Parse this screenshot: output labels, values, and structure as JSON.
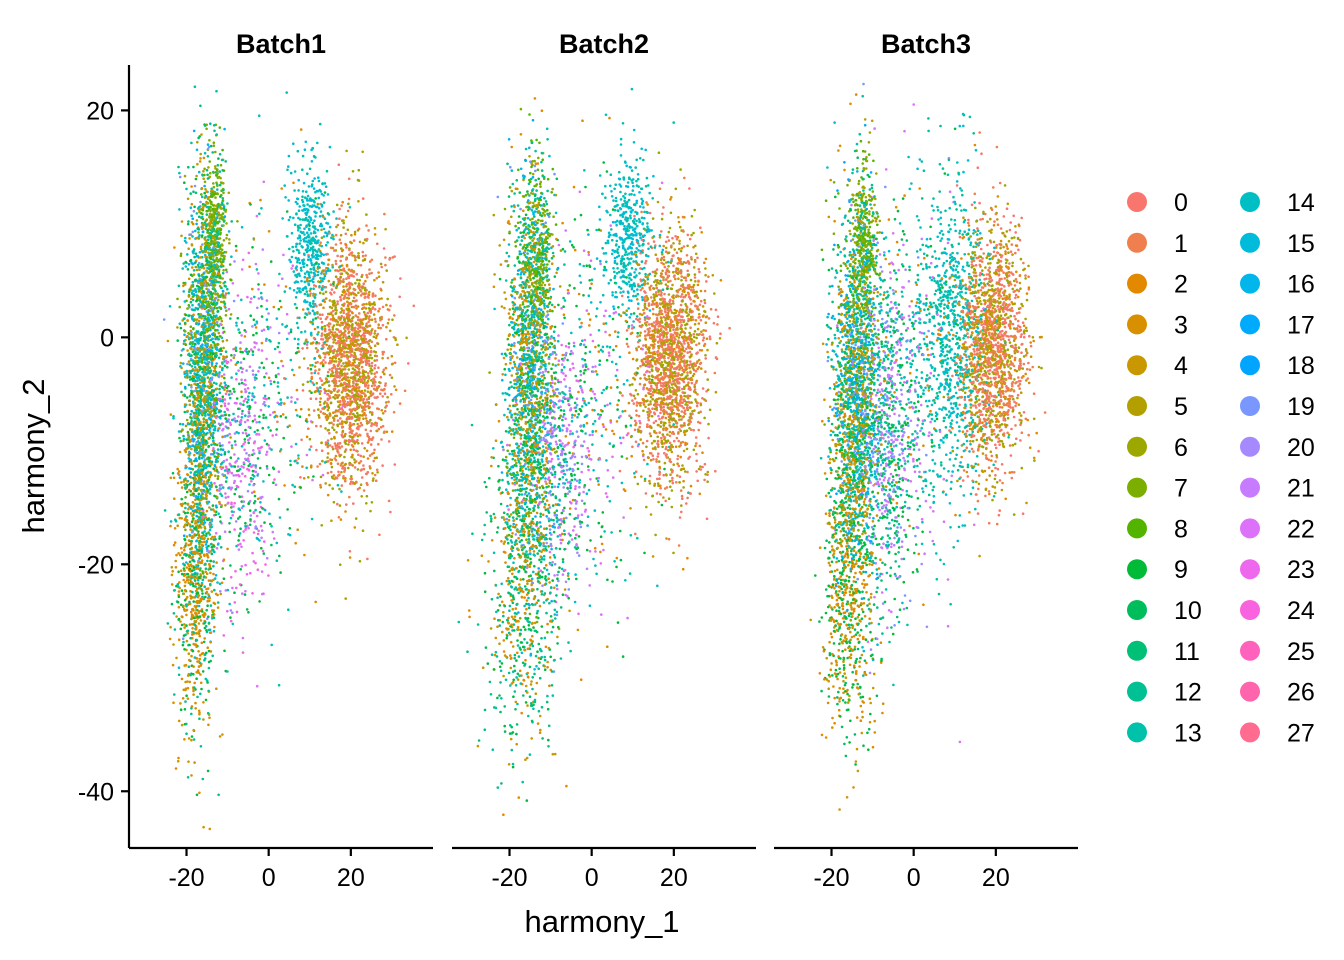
{
  "chart_data": {
    "type": "scatter",
    "xlabel": "harmony_1",
    "ylabel": "harmony_2",
    "xlim": [
      -34,
      40
    ],
    "ylim": [
      -45,
      24
    ],
    "x_ticks": [
      -20,
      0,
      20
    ],
    "x_tick_labels": [
      "-20",
      "0",
      "20"
    ],
    "y_ticks": [
      20,
      0,
      -20,
      -40
    ],
    "y_tick_labels": [
      "20",
      "0",
      "-20",
      "-40"
    ],
    "grid": false,
    "legend_position": "right",
    "legend_columns": 2,
    "panels": [
      {
        "title": "Batch1",
        "seed": 11,
        "n_points": 6200,
        "profile": "b1"
      },
      {
        "title": "Batch2",
        "seed": 23,
        "n_points": 6000,
        "profile": "b2"
      },
      {
        "title": "Batch3",
        "seed": 37,
        "n_points": 6600,
        "profile": "b3"
      }
    ],
    "clusters": [
      {
        "label": "0",
        "color": "#F8766D"
      },
      {
        "label": "1",
        "color": "#F07F4F"
      },
      {
        "label": "2",
        "color": "#E38900"
      },
      {
        "label": "3",
        "color": "#D89000"
      },
      {
        "label": "4",
        "color": "#C99800"
      },
      {
        "label": "5",
        "color": "#B3A000"
      },
      {
        "label": "6",
        "color": "#9CA700"
      },
      {
        "label": "7",
        "color": "#7CAE00"
      },
      {
        "label": "8",
        "color": "#53B400"
      },
      {
        "label": "9",
        "color": "#00BA38"
      },
      {
        "label": "10",
        "color": "#00BD5C"
      },
      {
        "label": "11",
        "color": "#00C078"
      },
      {
        "label": "12",
        "color": "#00C094"
      },
      {
        "label": "13",
        "color": "#00C1AA"
      },
      {
        "label": "14",
        "color": "#00BFC4"
      },
      {
        "label": "15",
        "color": "#00BBDA"
      },
      {
        "label": "16",
        "color": "#00B6EB"
      },
      {
        "label": "17",
        "color": "#00ABFD"
      },
      {
        "label": "18",
        "color": "#00A5FF"
      },
      {
        "label": "19",
        "color": "#7997FF"
      },
      {
        "label": "20",
        "color": "#A58AFF"
      },
      {
        "label": "21",
        "color": "#C77CFF"
      },
      {
        "label": "22",
        "color": "#DC71FA"
      },
      {
        "label": "23",
        "color": "#ED68ED"
      },
      {
        "label": "24",
        "color": "#F863DF"
      },
      {
        "label": "25",
        "color": "#FF62BC"
      },
      {
        "label": "26",
        "color": "#FF65AC"
      },
      {
        "label": "27",
        "color": "#FF6C90"
      }
    ],
    "groups": {
      "b1": [
        {
          "w": 0.3,
          "cx": 20,
          "cy": -2,
          "sx": 4.5,
          "sy": 5.5,
          "clusters": [
            0,
            0,
            0,
            1,
            1,
            2,
            4,
            5,
            6,
            6
          ]
        },
        {
          "w": 0.07,
          "cx": 10,
          "cy": 8,
          "sx": 2.5,
          "sy": 4,
          "clusters": [
            14,
            15,
            13
          ]
        },
        {
          "w": 0.32,
          "cx": -16,
          "cy": -4,
          "sx": 2.5,
          "sy": 9,
          "clusters": [
            2,
            3,
            4,
            5,
            10,
            11,
            12,
            13,
            14,
            15,
            16,
            17,
            19,
            7,
            8,
            9
          ]
        },
        {
          "w": 0.08,
          "cx": -13,
          "cy": 8,
          "sx": 1.5,
          "sy": 4,
          "clusters": [
            7,
            8,
            6,
            12
          ]
        },
        {
          "w": 0.1,
          "cx": -18,
          "cy": -22,
          "sx": 2.5,
          "sy": 7,
          "clusters": [
            2,
            3,
            3,
            4,
            9,
            12
          ]
        },
        {
          "w": 0.08,
          "cx": -6,
          "cy": -10,
          "sx": 4,
          "sy": 7,
          "clusters": [
            20,
            21,
            22,
            23,
            24,
            9,
            10,
            14
          ]
        },
        {
          "w": 0.05,
          "cx": 2,
          "cy": -4,
          "sx": 8,
          "sy": 9,
          "clusters": [
            14,
            13,
            9,
            22,
            2
          ]
        }
      ],
      "b2": [
        {
          "w": 0.3,
          "cx": 19,
          "cy": -2,
          "sx": 4.5,
          "sy": 5.5,
          "clusters": [
            0,
            0,
            0,
            1,
            1,
            2,
            4,
            5,
            6,
            6
          ]
        },
        {
          "w": 0.07,
          "cx": 9,
          "cy": 9,
          "sx": 3,
          "sy": 3.5,
          "clusters": [
            14,
            15,
            13
          ]
        },
        {
          "w": 0.3,
          "cx": -15,
          "cy": -4,
          "sx": 3,
          "sy": 9,
          "clusters": [
            2,
            3,
            4,
            5,
            10,
            11,
            12,
            13,
            14,
            15,
            16,
            17,
            19,
            7,
            8,
            9
          ]
        },
        {
          "w": 0.06,
          "cx": -13,
          "cy": 7,
          "sx": 1.5,
          "sy": 4,
          "clusters": [
            7,
            8,
            6,
            12
          ]
        },
        {
          "w": 0.12,
          "cx": -17,
          "cy": -22,
          "sx": 4.5,
          "sy": 7,
          "clusters": [
            2,
            3,
            4,
            9,
            10,
            11,
            12,
            13
          ]
        },
        {
          "w": 0.08,
          "cx": -8,
          "cy": -10,
          "sx": 4,
          "sy": 6,
          "clusters": [
            20,
            21,
            22,
            23,
            19,
            9,
            10,
            14
          ]
        },
        {
          "w": 0.07,
          "cx": 0,
          "cy": -5,
          "sx": 8,
          "sy": 9,
          "clusters": [
            14,
            13,
            9,
            22,
            2
          ]
        }
      ],
      "b3": [
        {
          "w": 0.26,
          "cx": 19,
          "cy": -1,
          "sx": 4,
          "sy": 5.5,
          "clusters": [
            0,
            0,
            0,
            1,
            1,
            2,
            4,
            5,
            6,
            6
          ]
        },
        {
          "w": 0.12,
          "cx": 9,
          "cy": 0,
          "sx": 4.5,
          "sy": 7,
          "clusters": [
            14,
            15,
            13,
            12,
            13
          ]
        },
        {
          "w": 0.28,
          "cx": -14,
          "cy": -5,
          "sx": 3,
          "sy": 8,
          "clusters": [
            2,
            3,
            4,
            5,
            10,
            11,
            12,
            13,
            14,
            15,
            16,
            17,
            18,
            19,
            7,
            8,
            9
          ]
        },
        {
          "w": 0.06,
          "cx": -12,
          "cy": 8,
          "sx": 1.5,
          "sy": 4,
          "clusters": [
            7,
            8,
            6,
            12
          ]
        },
        {
          "w": 0.1,
          "cx": -16,
          "cy": -22,
          "sx": 3,
          "sy": 7,
          "clusters": [
            2,
            3,
            4,
            9,
            10
          ]
        },
        {
          "w": 0.13,
          "cx": -6,
          "cy": -8,
          "sx": 3.5,
          "sy": 8,
          "clusters": [
            9,
            10,
            11,
            12,
            19,
            20,
            21,
            22,
            13
          ]
        },
        {
          "w": 0.05,
          "cx": 2,
          "cy": -3,
          "sx": 7,
          "sy": 9,
          "clusters": [
            14,
            13,
            9,
            22,
            2
          ]
        }
      ]
    }
  }
}
